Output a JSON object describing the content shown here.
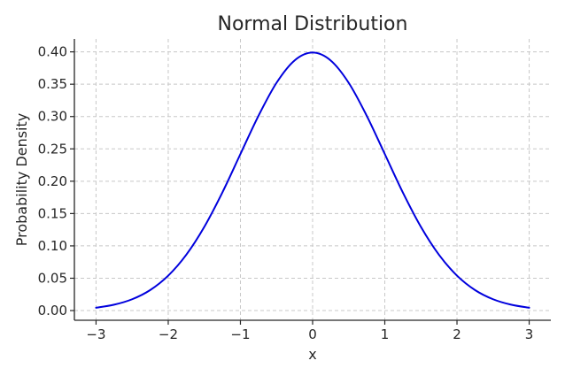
{
  "chart_data": {
    "type": "line",
    "title": "Normal Distribution",
    "xlabel": "x",
    "ylabel": "Probability Density",
    "xlim": [
      -3.3,
      3.3
    ],
    "ylim": [
      -0.015,
      0.42
    ],
    "xticks": [
      -3,
      -2,
      -1,
      0,
      1,
      2,
      3
    ],
    "xtick_labels": [
      "−3",
      "−2",
      "−1",
      "0",
      "1",
      "2",
      "3"
    ],
    "yticks": [
      0.0,
      0.05,
      0.1,
      0.15,
      0.2,
      0.25,
      0.3,
      0.35,
      0.4
    ],
    "ytick_labels": [
      "0.00",
      "0.05",
      "0.10",
      "0.15",
      "0.20",
      "0.25",
      "0.30",
      "0.35",
      "0.40"
    ],
    "grid": true,
    "legend": "none",
    "series": [
      {
        "color": "#0000dd",
        "x": [
          -3.0,
          -2.75,
          -2.5,
          -2.25,
          -2.0,
          -1.75,
          -1.5,
          -1.25,
          -1.0,
          -0.75,
          -0.5,
          -0.25,
          0.0,
          0.25,
          0.5,
          0.75,
          1.0,
          1.25,
          1.5,
          1.75,
          2.0,
          2.25,
          2.5,
          2.75,
          3.0
        ],
        "y": [
          0.0044,
          0.0091,
          0.0175,
          0.0317,
          0.054,
          0.0863,
          0.1295,
          0.1826,
          0.242,
          0.3011,
          0.3521,
          0.3867,
          0.3989,
          0.3867,
          0.3521,
          0.3011,
          0.242,
          0.1826,
          0.1295,
          0.0863,
          0.054,
          0.0317,
          0.0175,
          0.0091,
          0.0044
        ]
      }
    ]
  }
}
